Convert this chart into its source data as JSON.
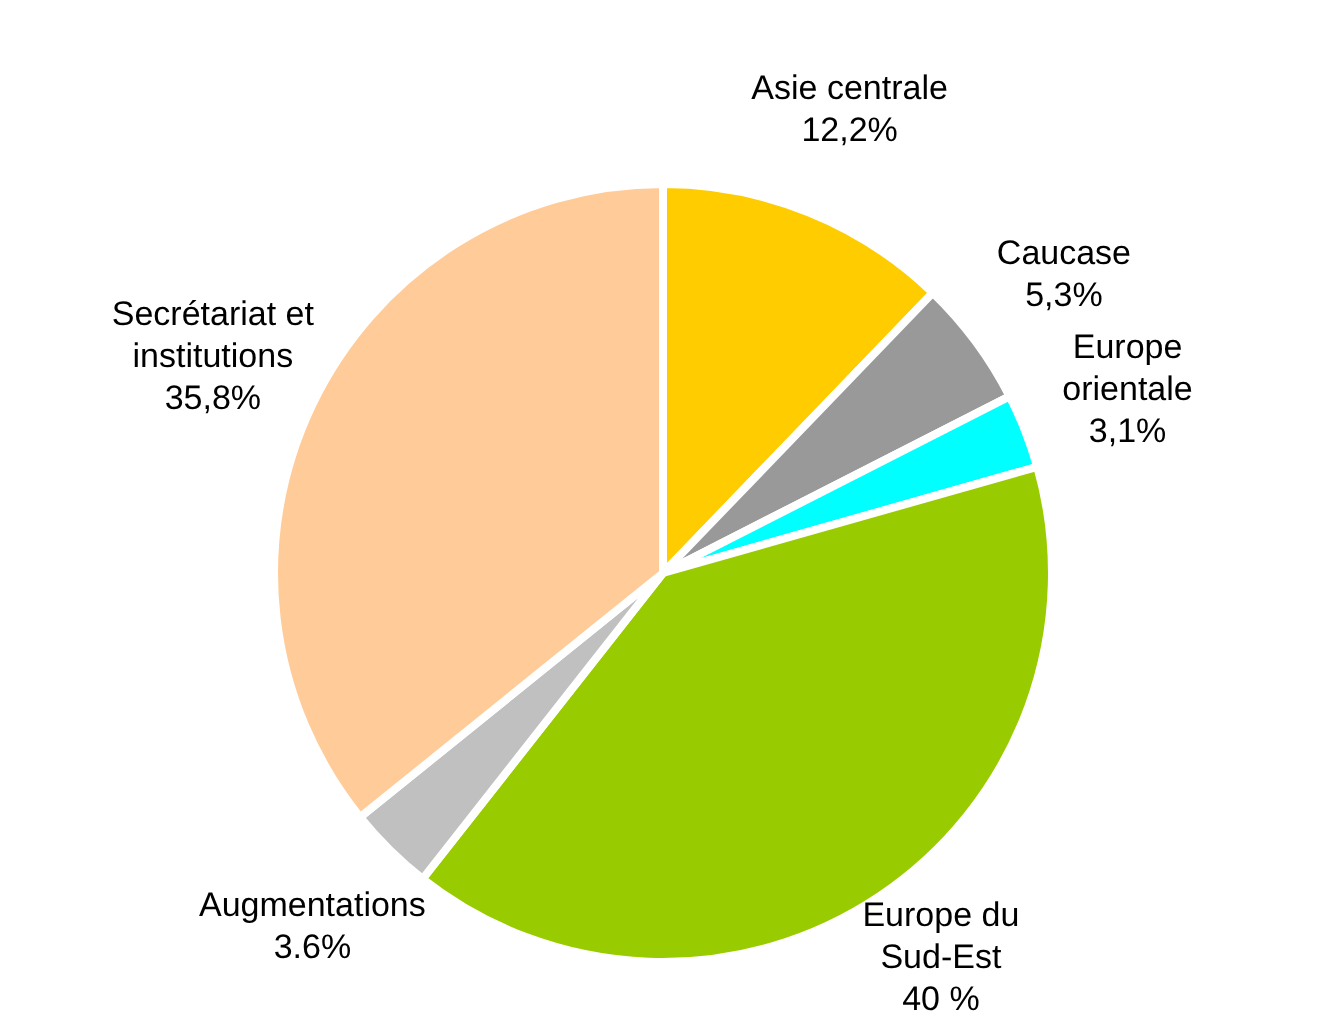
{
  "chart_data": {
    "type": "pie",
    "categories": [
      "Asie centrale",
      "Caucase",
      "Europe orientale",
      "Europe du Sud-Est",
      "Augmentations",
      "Secrétariat et institutions"
    ],
    "values": [
      12.2,
      5.3,
      3.1,
      40,
      3.6,
      35.8
    ],
    "colors": [
      "#ffcc00",
      "#999999",
      "#00ffff",
      "#99cc00",
      "#c0c0c0",
      "#ffcc99"
    ],
    "value_labels": [
      "12,2%",
      "5,3%",
      "3,1%",
      "40 %",
      "3.6%",
      "35,8%"
    ],
    "legend": false
  }
}
